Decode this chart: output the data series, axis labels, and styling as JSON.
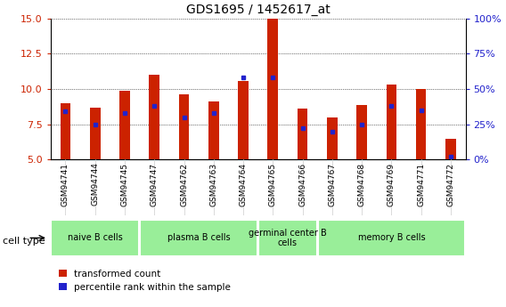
{
  "title": "GDS1695 / 1452617_at",
  "samples": [
    "GSM94741",
    "GSM94744",
    "GSM94745",
    "GSM94747",
    "GSM94762",
    "GSM94763",
    "GSM94764",
    "GSM94765",
    "GSM94766",
    "GSM94767",
    "GSM94768",
    "GSM94769",
    "GSM94771",
    "GSM94772"
  ],
  "transformed_counts": [
    9.0,
    8.7,
    9.9,
    11.0,
    9.6,
    9.1,
    10.6,
    15.0,
    8.6,
    8.0,
    8.9,
    10.3,
    10.0,
    6.5
  ],
  "percentile_ranks": [
    34,
    25,
    33,
    38,
    30,
    33,
    58,
    58,
    22,
    20,
    25,
    38,
    35,
    2
  ],
  "ylim_left": [
    5,
    15
  ],
  "ylim_right": [
    0,
    100
  ],
  "yticks_left": [
    5,
    7.5,
    10,
    12.5,
    15
  ],
  "yticks_right": [
    0,
    25,
    50,
    75,
    100
  ],
  "bar_color": "#cc2200",
  "dot_color": "#2222cc",
  "group_boundaries": [
    0,
    3,
    7,
    9,
    14
  ],
  "group_names": [
    "naive B cells",
    "plasma B cells",
    "germinal center B\ncells",
    "memory B cells"
  ],
  "group_color": "#99ee99",
  "legend_labels": [
    "transformed count",
    "percentile rank within the sample"
  ],
  "legend_colors": [
    "#cc2200",
    "#2222cc"
  ],
  "bg_color": "#ffffff",
  "cell_type_label": "cell type",
  "bar_width": 0.35
}
